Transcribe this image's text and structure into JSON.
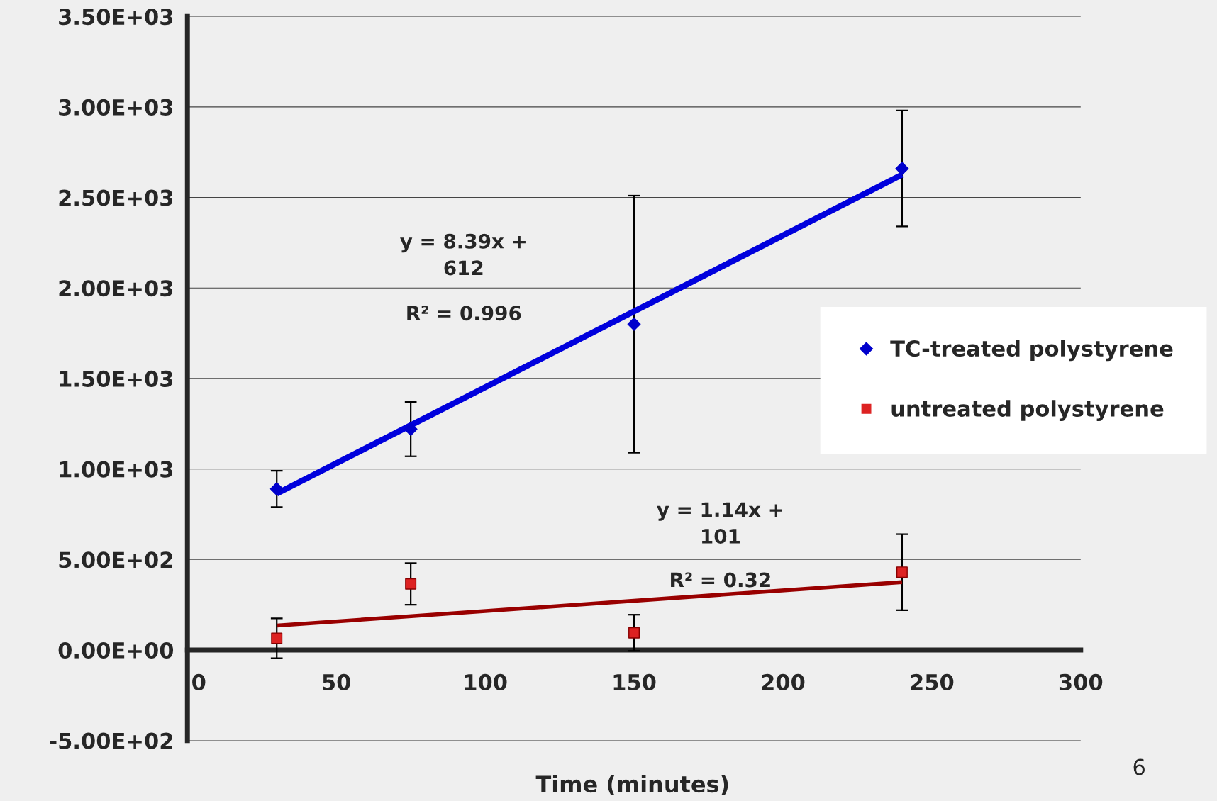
{
  "chart_data": {
    "type": "scatter",
    "xlabel": "Time (minutes)",
    "xlim": [
      0,
      300
    ],
    "xticks": [
      0,
      50,
      100,
      150,
      200,
      250,
      300
    ],
    "ylim": [
      -500,
      3500
    ],
    "yticks": [
      {
        "value": -500,
        "label": "-5.00E+02"
      },
      {
        "value": 0,
        "label": "0.00E+00"
      },
      {
        "value": 500,
        "label": "5.00E+02"
      },
      {
        "value": 1000,
        "label": "1.00E+03"
      },
      {
        "value": 1500,
        "label": "1.50E+03"
      },
      {
        "value": 2000,
        "label": "2.00E+03"
      },
      {
        "value": 2500,
        "label": "2.50E+03"
      },
      {
        "value": 3000,
        "label": "3.00E+03"
      },
      {
        "value": 3500,
        "label": "3.50E+03"
      }
    ],
    "grid": "y",
    "legend": "right",
    "series": [
      {
        "name": "TC-treated polystyrene",
        "color": "#0000cc",
        "marker": "diamond",
        "x": [
          30,
          75,
          150,
          240
        ],
        "values": [
          890,
          1220,
          1800,
          2660
        ],
        "errors": [
          100,
          150,
          710,
          320
        ]
      },
      {
        "name": "untreated polystyrene",
        "color": "#dd2222",
        "marker": "square",
        "x": [
          30,
          75,
          150,
          240
        ],
        "values": [
          65,
          365,
          95,
          430
        ],
        "errors": [
          110,
          115,
          100,
          210
        ]
      },
      {
        "type": "line",
        "color": "#0000dd",
        "marker": "none",
        "x": [
          30,
          240
        ],
        "values": [
          864,
          2626
        ]
      },
      {
        "type": "line",
        "color": "#990000",
        "marker": "none",
        "x": [
          30,
          240
        ],
        "values": [
          135,
          375
        ]
      }
    ],
    "annotations": [
      "y = 8.39x +\n612",
      "R² = 0.996",
      "y = 1.14x +\n101",
      "R² = 0.32",
      "6"
    ]
  }
}
